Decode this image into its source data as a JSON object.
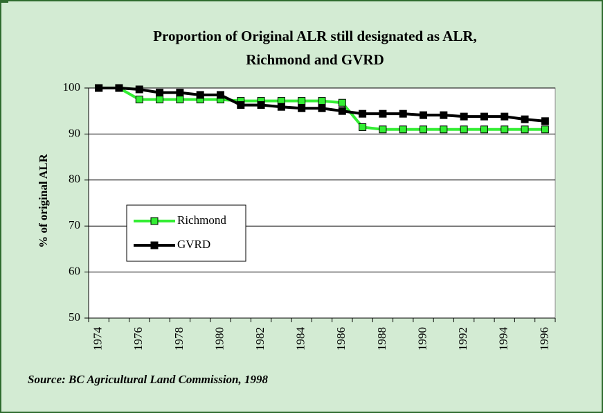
{
  "chart_data": {
    "type": "line",
    "title": [
      "Proportion of Original ALR still designated as ALR,",
      "Richmond and GVRD"
    ],
    "y_label": "% of original ALR",
    "source": "Source: BC Agricultural Land Commission, 1998",
    "x": [
      1974,
      1975,
      1976,
      1977,
      1978,
      1979,
      1980,
      1981,
      1982,
      1983,
      1984,
      1985,
      1986,
      1987,
      1988,
      1989,
      1990,
      1991,
      1992,
      1993,
      1994,
      1995,
      1996
    ],
    "xlim": [
      1973.5,
      1996.5
    ],
    "xticks": [
      1974,
      1976,
      1978,
      1980,
      1982,
      1984,
      1986,
      1988,
      1990,
      1992,
      1994,
      1996
    ],
    "ylim": [
      50,
      100
    ],
    "yticks": [
      50,
      60,
      70,
      80,
      90,
      100
    ],
    "grid": true,
    "series": [
      {
        "name": "Richmond",
        "color": "#33ee33",
        "values": [
          100,
          100,
          97.5,
          97.5,
          97.5,
          97.5,
          97.5,
          97.2,
          97.2,
          97.2,
          97.2,
          97.2,
          96.8,
          91.5,
          91,
          91,
          91,
          91,
          91,
          91,
          91,
          91,
          91
        ]
      },
      {
        "name": "GVRD",
        "color": "#000000",
        "values": [
          100,
          100,
          99.7,
          99,
          99,
          98.5,
          98.5,
          96.3,
          96.3,
          95.9,
          95.6,
          95.6,
          95,
          94.4,
          94.4,
          94.4,
          94.1,
          94.1,
          93.8,
          93.8,
          93.8,
          93.2,
          92.8
        ]
      }
    ]
  }
}
